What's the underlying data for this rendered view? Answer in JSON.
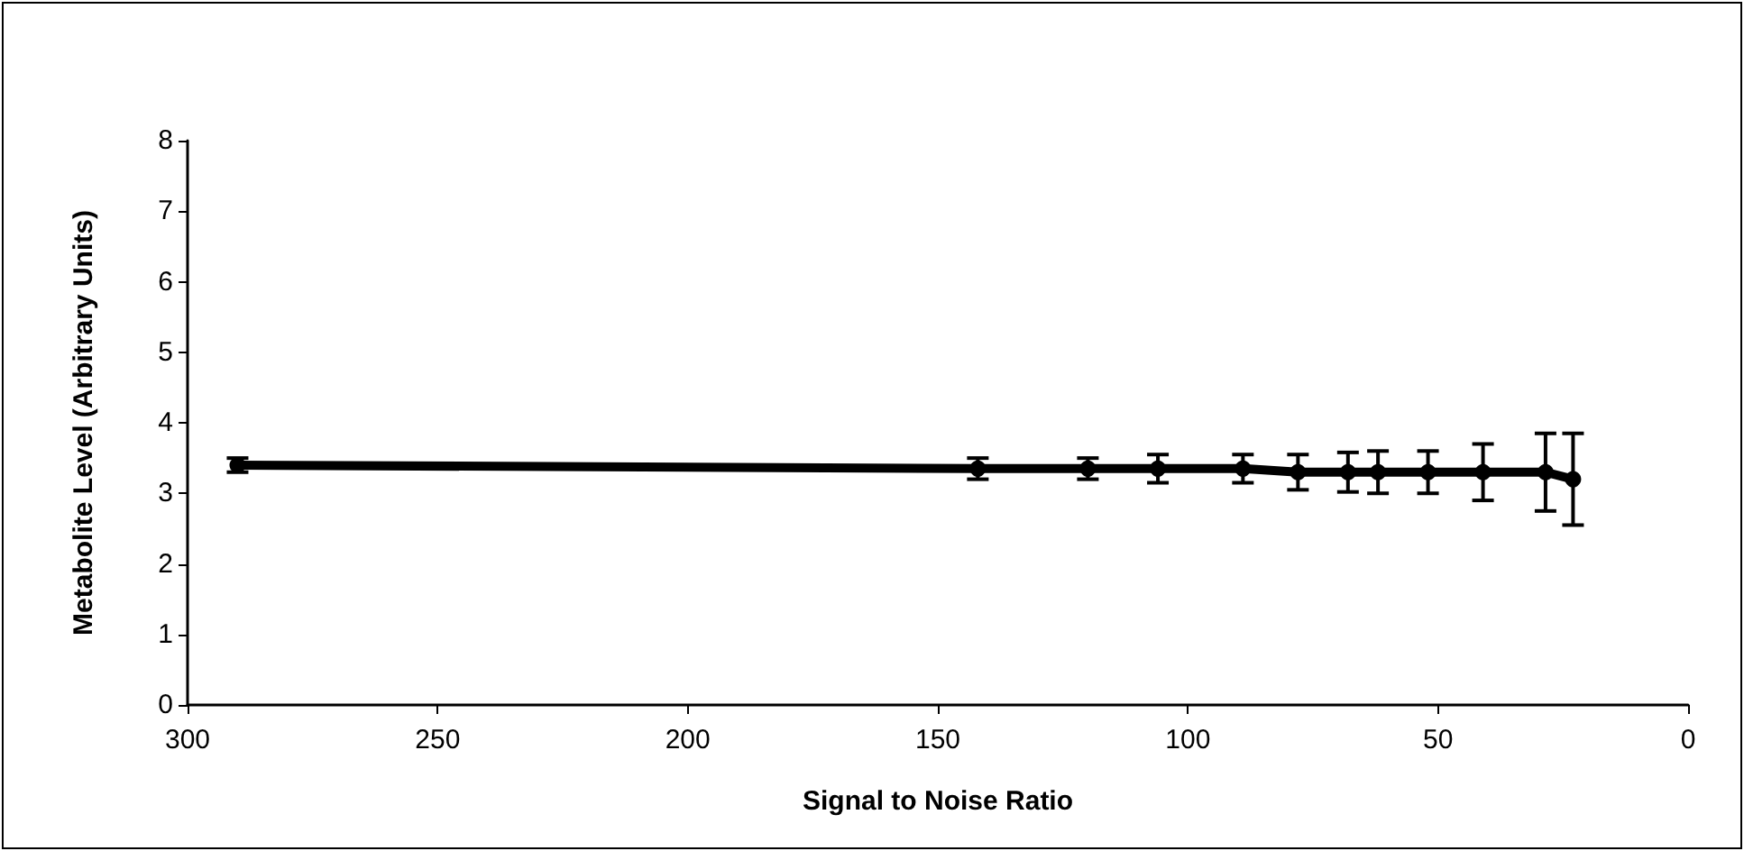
{
  "chart_data": {
    "type": "line",
    "xlabel": "Signal to Noise Ratio",
    "ylabel": "Metabolite Level (Arbitrary Units)",
    "x": [
      290,
      142,
      120,
      106,
      89,
      78,
      68,
      62,
      52,
      41,
      28.5,
      23
    ],
    "series": [
      {
        "color": "#000000",
        "values": [
          3.4,
          3.35,
          3.35,
          3.35,
          3.35,
          3.3,
          3.3,
          3.3,
          3.3,
          3.3,
          3.3,
          3.2
        ],
        "errors": [
          0.1,
          0.15,
          0.15,
          0.2,
          0.2,
          0.25,
          0.28,
          0.3,
          0.3,
          0.4,
          0.55,
          0.65
        ]
      }
    ],
    "xlim": [
      300,
      0
    ],
    "xticks": [
      300,
      250,
      200,
      150,
      100,
      50,
      0
    ],
    "ylim": [
      0,
      8
    ],
    "yticks": [
      0,
      1,
      2,
      3,
      4,
      5,
      6,
      7,
      8
    ],
    "marker": "circle",
    "line_style": "solid",
    "grid": false
  }
}
